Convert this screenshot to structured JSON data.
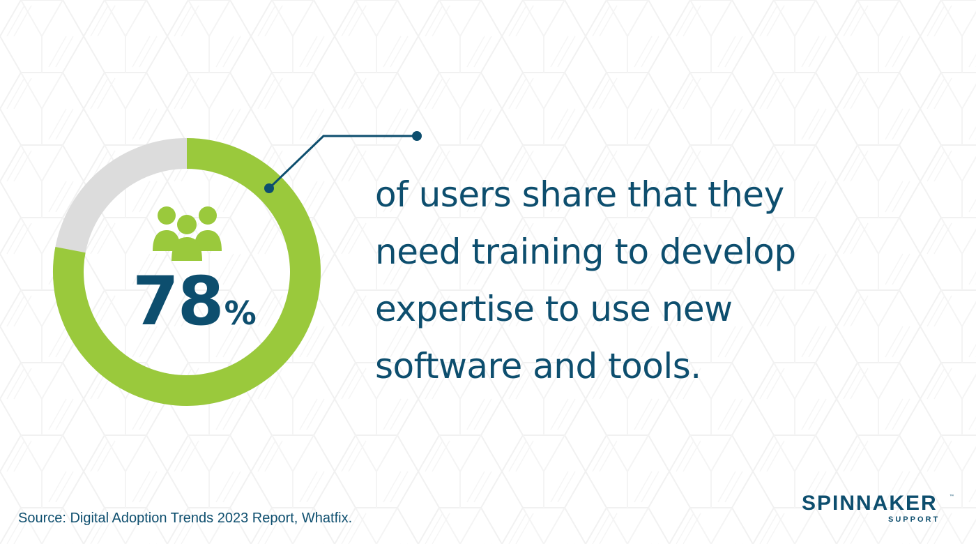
{
  "chart_data": {
    "type": "pie",
    "value_percent": 78,
    "slices": [
      {
        "label": "",
        "value": 78,
        "color": "#9ac93c"
      },
      {
        "label": "",
        "value": 22,
        "color": "#dcdcdc"
      }
    ]
  },
  "stat": {
    "number": "78",
    "symbol": "%"
  },
  "headline": {
    "lines": [
      "of users share that they",
      "need training to develop",
      "expertise to use new",
      "software and tools."
    ]
  },
  "source": "Source: Digital Adoption Trends 2023 Report, Whatfix.",
  "logo": {
    "brand": "SPINNAKER",
    "tm": "™",
    "sub": "SUPPORT"
  },
  "colors": {
    "accent_green": "#9ac93c",
    "track_gray": "#dcdcdc",
    "navy": "#0d4e6e"
  },
  "icons": {
    "users": "users-group-icon"
  }
}
